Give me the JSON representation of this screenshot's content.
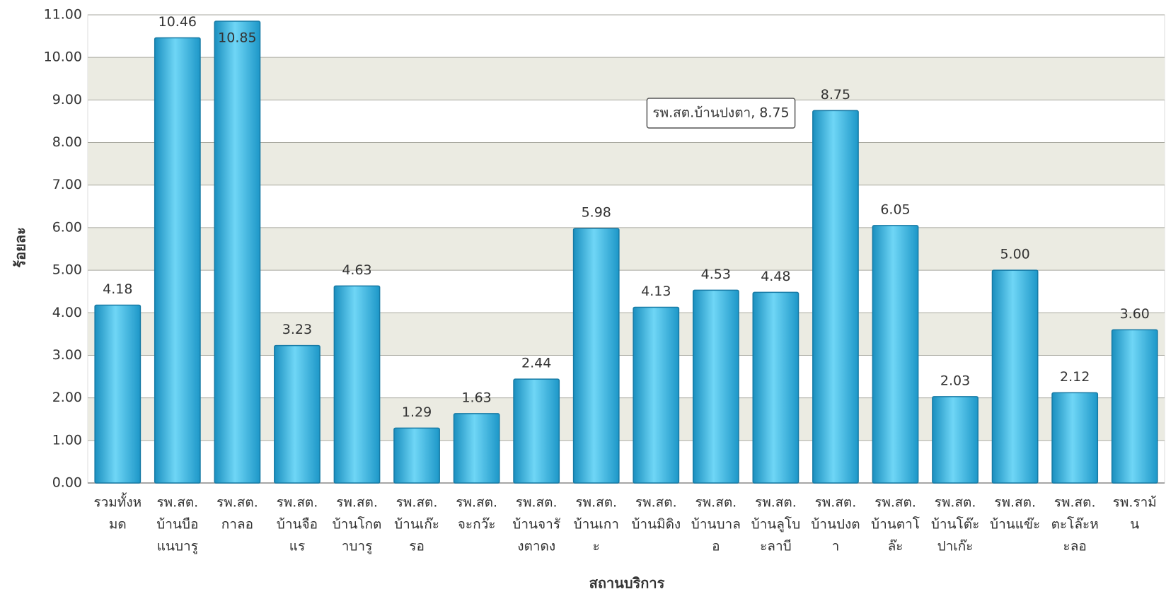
{
  "chart_data": {
    "type": "bar",
    "y_label": "ร้อยละ",
    "x_label": "สถานบริการ",
    "tooltip": "รพ.สต.บ้านปงตา, 8.75",
    "categories": [
      [
        "รวมทั้งห",
        "มด"
      ],
      [
        "รพ.สต.",
        "บ้านบือ",
        "แนบารู"
      ],
      [
        "รพ.สต.",
        "กาลอ"
      ],
      [
        "รพ.สต.",
        "บ้านจือ",
        "แร"
      ],
      [
        "รพ.สต.",
        "บ้านโกต",
        "าบารู"
      ],
      [
        "รพ.สต.",
        "บ้านเก๊ะ",
        "รอ"
      ],
      [
        "รพ.สต.",
        "จะกว๊ะ"
      ],
      [
        "รพ.สต.",
        "บ้านจารั",
        "งตาดง"
      ],
      [
        "รพ.สต.",
        "บ้านเกา",
        "ะ"
      ],
      [
        "รพ.สต.",
        "บ้านมิดิง"
      ],
      [
        "รพ.สต.",
        "บ้านบาล",
        "อ"
      ],
      [
        "รพ.สต.",
        "บ้านลูโบ",
        "ะลาบี"
      ],
      [
        "รพ.สต.",
        "บ้านปงต",
        "า"
      ],
      [
        "รพ.สต.",
        "บ้านตาโ",
        "ล๊ะ"
      ],
      [
        "รพ.สต.",
        "บ้านโต๊ะ",
        "ปาเก๊ะ"
      ],
      [
        "รพ.สต.",
        "บ้านแข๊ะ"
      ],
      [
        "รพ.สต.",
        "ตะโล๊ะห",
        "ะลอ"
      ],
      [
        "รพ.ราม้",
        "น"
      ]
    ],
    "values": [
      4.18,
      10.46,
      10.85,
      3.23,
      4.63,
      1.29,
      1.63,
      2.44,
      5.98,
      4.13,
      4.53,
      4.48,
      8.75,
      6.05,
      2.03,
      5.0,
      2.12,
      3.6
    ],
    "value_labels": [
      "4.18",
      "10.46",
      "10.85",
      "3.23",
      "4.63",
      "1.29",
      "1.63",
      "2.44",
      "5.98",
      "4.13",
      "4.53",
      "4.48",
      "8.75",
      "6.05",
      "2.03",
      "5.00",
      "2.12",
      "3.60"
    ],
    "color": "#2aa8d6",
    "ylim": [
      0,
      11
    ],
    "yticks": [
      {
        "value": 0,
        "label": "0.00"
      },
      {
        "value": 1,
        "label": "1.00"
      },
      {
        "value": 2,
        "label": "2.00"
      },
      {
        "value": 3,
        "label": "3.00"
      },
      {
        "value": 4,
        "label": "4.00"
      },
      {
        "value": 5,
        "label": "5.00"
      },
      {
        "value": 6,
        "label": "6.00"
      },
      {
        "value": 7,
        "label": "7.00"
      },
      {
        "value": 8,
        "label": "8.00"
      },
      {
        "value": 9,
        "label": "9.00"
      },
      {
        "value": 10,
        "label": "10.00"
      },
      {
        "value": 11,
        "label": "11.00"
      }
    ],
    "grid": true
  }
}
